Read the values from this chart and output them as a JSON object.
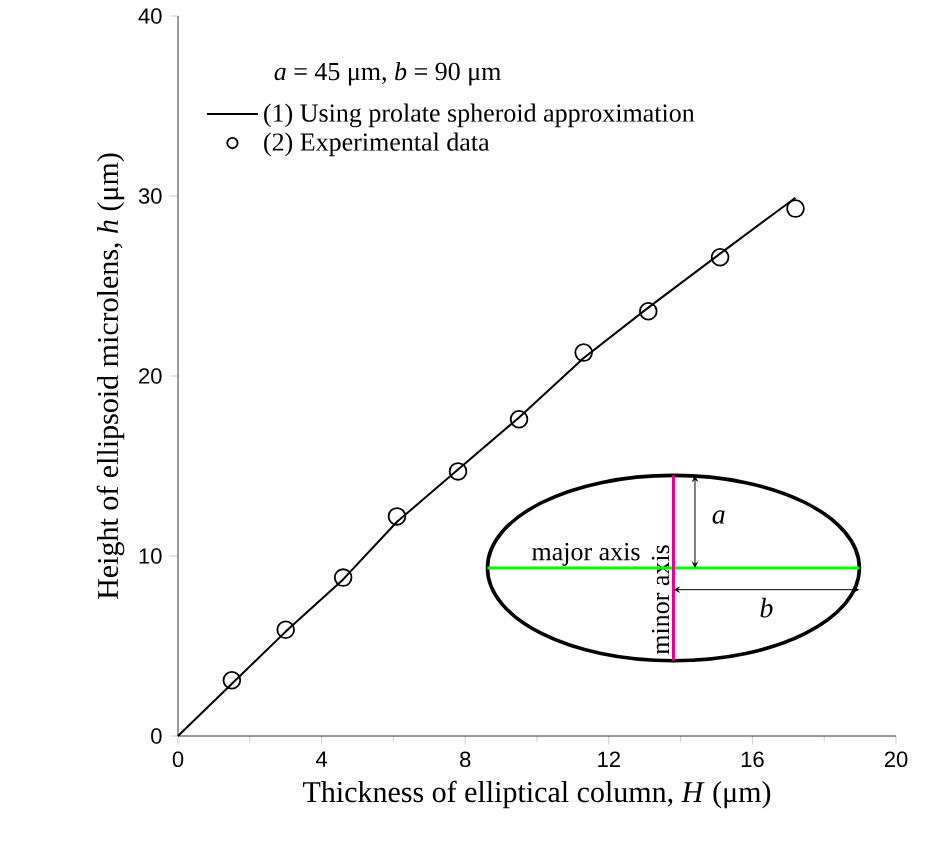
{
  "chart_data": {
    "type": "line",
    "xlabel": "Thickness of elliptical column, *H* (μm)",
    "ylabel": "Height of ellipsoid microlens, *h* (μm)",
    "xlim": [
      0,
      20
    ],
    "ylim": [
      0,
      40
    ],
    "xticks": [
      0,
      4,
      8,
      12,
      16,
      20
    ],
    "yticks": [
      0,
      10,
      20,
      30,
      40
    ],
    "legend": "top left",
    "annotations": [
      "*a* = 45 μm, *b* = 90 μm",
      "major axis",
      "minor axis",
      "a",
      "b"
    ],
    "series": [
      {
        "name": "(1) Using prolate spheroid approximation",
        "color": "#000000",
        "marker": "none",
        "line_style": "solid",
        "x": [
          0,
          1.5,
          3,
          4.6,
          6.1,
          7.8,
          9.5,
          11.3,
          13.1,
          15.1,
          17.2
        ],
        "values": [
          0,
          2.9,
          5.8,
          8.7,
          11.9,
          14.8,
          17.7,
          21,
          23.8,
          26.8,
          29.9
        ]
      },
      {
        "name": "(2) Experimental data",
        "type": "scatter",
        "color": "#000000",
        "marker": "circle",
        "x": [
          1.5,
          3.0,
          4.6,
          6.1,
          7.8,
          9.5,
          11.3,
          13.1,
          15.1,
          17.2
        ],
        "values": [
          3.1,
          5.9,
          8.8,
          12.2,
          14.7,
          17.6,
          21.3,
          23.6,
          26.6,
          29.3
        ]
      }
    ]
  }
}
